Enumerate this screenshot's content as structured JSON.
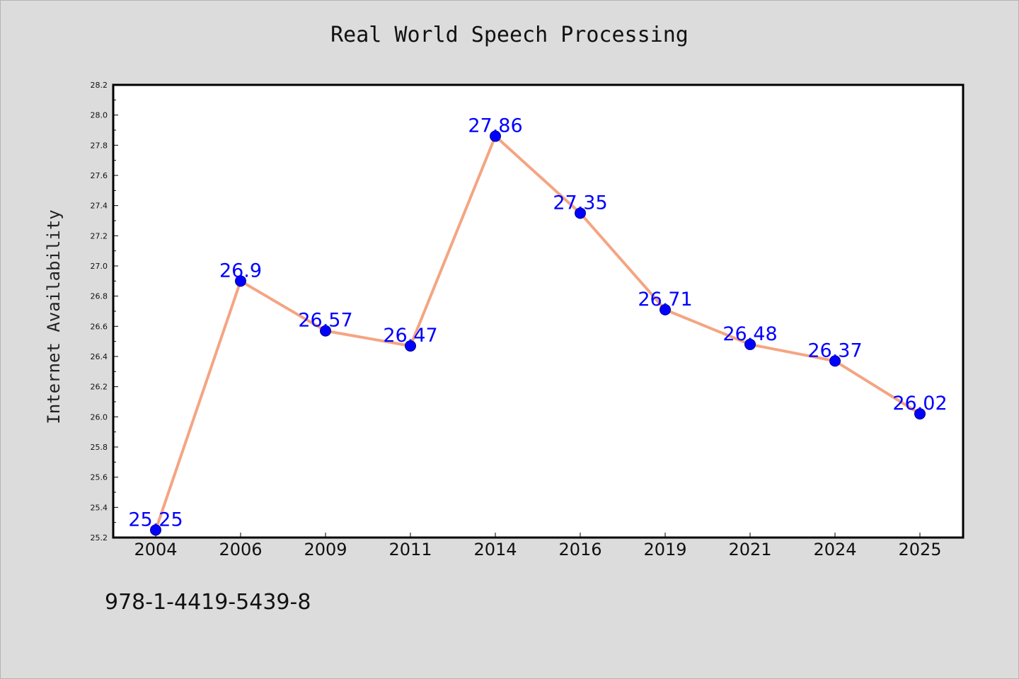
{
  "chart_data": {
    "type": "line",
    "title": "Real World Speech Processing",
    "xlabel": "",
    "ylabel": "Internet Availability",
    "categories": [
      "2004",
      "2006",
      "2009",
      "2011",
      "2014",
      "2016",
      "2019",
      "2021",
      "2024",
      "2025"
    ],
    "series": [
      {
        "values": [
          25.25,
          26.9,
          26.57,
          26.47,
          27.86,
          27.35,
          26.71,
          26.48,
          26.37,
          26.02
        ],
        "data_labels": [
          "25.25",
          "26.9",
          "26.57",
          "26.47",
          "27.86",
          "27.35",
          "26.71",
          "26.48",
          "26.37",
          "26.02"
        ],
        "line_color": "#f4a582",
        "marker_color": "#0000ff",
        "label_color": "#0000ff"
      }
    ],
    "ylim": [
      25.2,
      28.2
    ],
    "yticks": [
      "25.2",
      "25.4",
      "25.6",
      "25.8",
      "26.0",
      "26.2",
      "26.4",
      "26.6",
      "26.8",
      "27.0",
      "27.2",
      "27.4",
      "27.6",
      "27.8",
      "28.0",
      "28.2"
    ],
    "grid": false,
    "legend": "none"
  },
  "footer": {
    "isbn": "978-1-4419-5439-8"
  },
  "colors": {
    "background": "#dcdcdc",
    "plot_background": "#ffffff",
    "axis": "#000000"
  }
}
